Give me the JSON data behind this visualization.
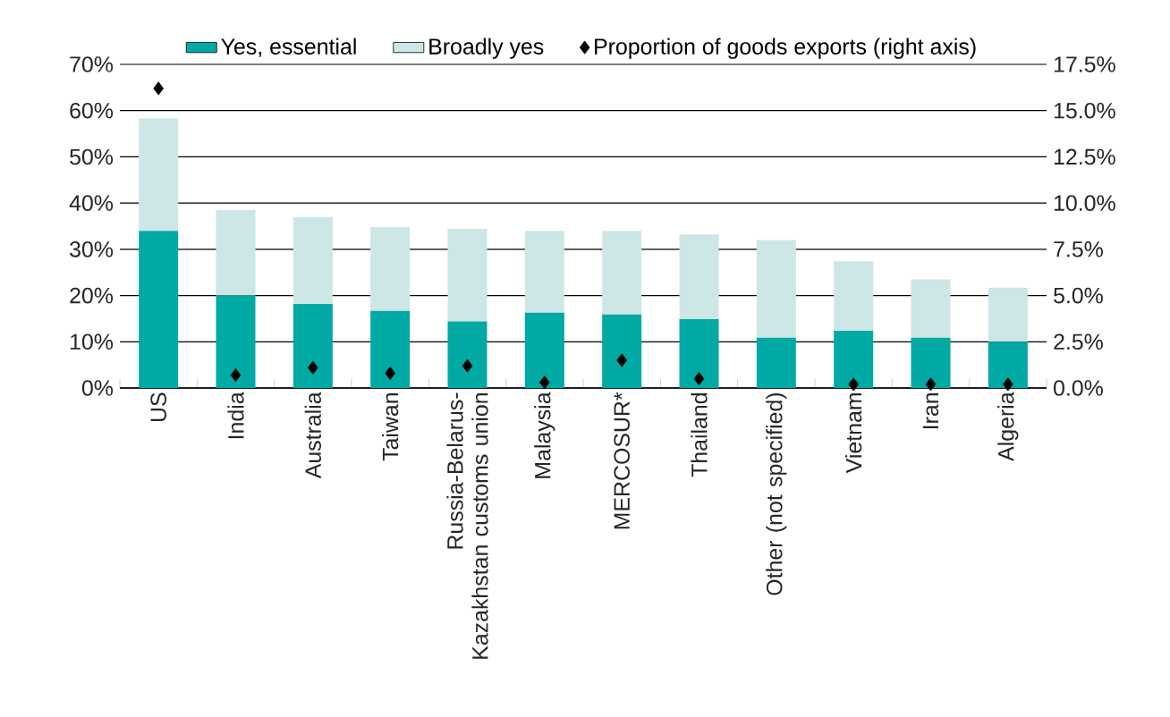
{
  "chart_data": {
    "type": "bar",
    "stacked": true,
    "legend": "top",
    "grid": "y",
    "categories": [
      "US",
      "India",
      "Australia",
      "Taiwan",
      "Russia-Belarus-Kazakhstan customs union",
      "Malaysia",
      "MERCOSUR*",
      "Thailand",
      "Other (not specified)",
      "Vietnam",
      "Iran",
      "Algeria"
    ],
    "series": [
      {
        "name": "Yes, essential",
        "color": "#00a9a4",
        "values": [
          34,
          20,
          18.2,
          16.7,
          14.4,
          16.3,
          15.9,
          14.9,
          10.9,
          12.4,
          10.9,
          10
        ]
      },
      {
        "name": "Broadly yes",
        "color": "#cde6e6",
        "values": [
          24.3,
          18.5,
          18.8,
          18.1,
          20,
          17.7,
          18.1,
          18.3,
          21.1,
          15,
          12.6,
          11.7
        ]
      },
      {
        "name": "Proportion of goods exports (right axis)",
        "type": "scatter",
        "axis": "y2",
        "marker": "diamond",
        "color": "#000000",
        "values": [
          16.2,
          0.7,
          1.1,
          0.8,
          1.2,
          0.3,
          1.5,
          0.5,
          null,
          0.2,
          0.2,
          0.2
        ]
      }
    ],
    "ylim": [
      0,
      70
    ],
    "yticks": [
      {
        "value": 0,
        "label": "0%"
      },
      {
        "value": 10,
        "label": "10%"
      },
      {
        "value": 20,
        "label": "20%"
      },
      {
        "value": 30,
        "label": "30%"
      },
      {
        "value": 40,
        "label": "40%"
      },
      {
        "value": 50,
        "label": "50%"
      },
      {
        "value": 60,
        "label": "60%"
      },
      {
        "value": 70,
        "label": "70%"
      }
    ],
    "y2lim": [
      0,
      17.5
    ],
    "y2ticks": [
      {
        "value": 0,
        "label": "0.0%"
      },
      {
        "value": 2.5,
        "label": "2.5%"
      },
      {
        "value": 5,
        "label": "5.0%"
      },
      {
        "value": 7.5,
        "label": "7.5%"
      },
      {
        "value": 10,
        "label": "10.0%"
      },
      {
        "value": 12.5,
        "label": "12.5%"
      },
      {
        "value": 15,
        "label": "15.0%"
      },
      {
        "value": 17.5,
        "label": "17.5%"
      }
    ]
  }
}
